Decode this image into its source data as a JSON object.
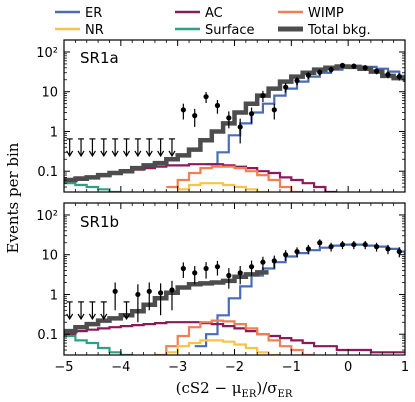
{
  "chart_data": [
    {
      "type": "line",
      "panel_label": "SR1a",
      "xlim": [
        -5,
        1
      ],
      "ylim": [
        0.03,
        200
      ],
      "yscale": "log",
      "x_ticks": [
        "−5",
        "−4",
        "−3",
        "−2",
        "−1",
        "0",
        "1"
      ],
      "y_ticks": [
        "0.1",
        "1",
        "10",
        "10²"
      ],
      "legend": [
        {
          "name": "ER",
          "color": "#4a6bb8"
        },
        {
          "name": "AC",
          "color": "#8b1a5b"
        },
        {
          "name": "WIMP",
          "color": "#f07f55"
        },
        {
          "name": "NR",
          "color": "#f7c443"
        },
        {
          "name": "Surface",
          "color": "#2ea083"
        },
        {
          "name": "Total bkg.",
          "color": "#4d4d4d"
        }
      ],
      "series": [
        {
          "name": "ER",
          "color": "#4a6bb8",
          "x": [
            -2.5,
            -2.3,
            -2.1,
            -1.9,
            -1.7,
            -1.5,
            -1.3,
            -1.1,
            -0.9,
            -0.7,
            -0.5,
            -0.3,
            -0.1,
            0.1,
            0.3,
            0.5,
            0.7,
            0.9,
            1.0
          ],
          "y": [
            0.15,
            0.3,
            0.8,
            1.6,
            3,
            5,
            8,
            12,
            18,
            24,
            30,
            36,
            40,
            43,
            42,
            38,
            32,
            25,
            22
          ]
        },
        {
          "name": "AC",
          "color": "#8b1a5b",
          "x": [
            -5.0,
            -4.8,
            -4.6,
            -4.4,
            -4.2,
            -4.0,
            -3.8,
            -3.6,
            -3.4,
            -3.2,
            -3.0,
            -2.8,
            -2.6,
            -2.4,
            -2.2,
            -2.0,
            -1.8,
            -1.6,
            -1.4,
            -1.2,
            -1.0,
            -0.8,
            -0.6,
            -0.4
          ],
          "y": [
            0.06,
            0.07,
            0.07,
            0.08,
            0.09,
            0.1,
            0.11,
            0.12,
            0.13,
            0.14,
            0.14,
            0.15,
            0.15,
            0.15,
            0.14,
            0.13,
            0.12,
            0.1,
            0.09,
            0.07,
            0.06,
            0.05,
            0.04,
            0.03
          ]
        },
        {
          "name": "WIMP",
          "color": "#f07f55",
          "x": [
            -3.2,
            -3.0,
            -2.8,
            -2.6,
            -2.4,
            -2.2,
            -2.0,
            -1.8,
            -1.6,
            -1.4,
            -1.2,
            -1.0
          ],
          "y": [
            0.04,
            0.06,
            0.09,
            0.12,
            0.13,
            0.13,
            0.12,
            0.1,
            0.08,
            0.06,
            0.04,
            0.03
          ]
        },
        {
          "name": "NR",
          "color": "#f7c443",
          "x": [
            -3.0,
            -2.8,
            -2.6,
            -2.4,
            -2.2,
            -2.0,
            -1.8,
            -1.6
          ],
          "y": [
            0.035,
            0.045,
            0.05,
            0.05,
            0.045,
            0.04,
            0.035,
            0.03
          ]
        },
        {
          "name": "Surface",
          "color": "#2ea083",
          "x": [
            -5.0,
            -4.8,
            -4.6,
            -4.4,
            -4.2
          ],
          "y": [
            0.05,
            0.045,
            0.04,
            0.035,
            0.03
          ]
        },
        {
          "name": "Total bkg.",
          "color": "#4d4d4d",
          "x": [
            -5.0,
            -4.8,
            -4.6,
            -4.4,
            -4.2,
            -4.0,
            -3.8,
            -3.6,
            -3.4,
            -3.2,
            -3.0,
            -2.8,
            -2.6,
            -2.4,
            -2.2,
            -2.0,
            -1.8,
            -1.6,
            -1.4,
            -1.2,
            -1.0,
            -0.8,
            -0.6,
            -0.4,
            -0.2,
            0.0,
            0.2,
            0.4,
            0.6,
            0.8,
            1.0
          ],
          "y": [
            0.06,
            0.065,
            0.07,
            0.08,
            0.09,
            0.1,
            0.12,
            0.14,
            0.16,
            0.2,
            0.25,
            0.35,
            0.6,
            1.0,
            1.6,
            3,
            5,
            8,
            12,
            18,
            24,
            30,
            36,
            40,
            43,
            42,
            38,
            32,
            25,
            22,
            20
          ]
        }
      ],
      "data_points": {
        "x": [
          -2.1,
          -1.9,
          -1.7,
          -1.5,
          -1.3,
          -1.1,
          -0.9,
          -0.7,
          -0.5,
          -0.3,
          -0.1,
          0.1,
          0.3,
          0.5,
          0.7,
          0.9,
          -2.9,
          -2.7,
          -2.5,
          -2.3
        ],
        "y": [
          2.2,
          1.3,
          2.8,
          8,
          3.5,
          13,
          19,
          26,
          31,
          36,
          46,
          44,
          40,
          33,
          27,
          24,
          3.5,
          2.5,
          7.5,
          4.5
        ],
        "yerr": [
          1.0,
          0.8,
          1.2,
          2.5,
          1.5,
          3.5,
          4.3,
          5,
          5.5,
          6,
          6.8,
          6.6,
          6.3,
          5.7,
          5.2,
          4.9,
          1.5,
          1.2,
          2.3,
          1.7
        ]
      },
      "upper_limits_x": [
        -4.9,
        -4.7,
        -4.5,
        -4.3,
        -4.1,
        -3.9,
        -3.7,
        -3.5,
        -3.3,
        -3.1
      ],
      "upper_limit_y": 0.65
    },
    {
      "type": "line",
      "panel_label": "SR1b",
      "xlim": [
        -5,
        1
      ],
      "ylim": [
        0.03,
        200
      ],
      "yscale": "log",
      "x_ticks": [
        "−5",
        "−4",
        "−3",
        "−2",
        "−1",
        "0",
        "1"
      ],
      "y_ticks": [
        "0.1",
        "1",
        "10",
        "10²"
      ],
      "series": [
        {
          "name": "ER",
          "color": "#4a6bb8",
          "x": [
            -2.7,
            -2.5,
            -2.3,
            -2.1,
            -1.9,
            -1.7,
            -1.5,
            -1.3,
            -1.1,
            -0.9,
            -0.7,
            -0.5,
            -0.3,
            -0.1,
            0.1,
            0.3,
            0.5,
            0.7,
            0.9,
            1.0
          ],
          "y": [
            0.05,
            0.1,
            0.3,
            0.8,
            1.6,
            3,
            4.5,
            6.5,
            9,
            11,
            13,
            15,
            17,
            18,
            18,
            17,
            16,
            14,
            12,
            11
          ]
        },
        {
          "name": "AC",
          "color": "#8b1a5b",
          "x": [
            -5.0,
            -4.8,
            -4.6,
            -4.4,
            -4.2,
            -4.0,
            -3.8,
            -3.6,
            -3.4,
            -3.2,
            -3.0,
            -2.8,
            -2.6,
            -2.4,
            -2.2,
            -2.0,
            -1.8,
            -1.6,
            -1.4,
            -1.2,
            -1.0,
            -0.8,
            -0.6,
            -0.4,
            -0.2,
            0.0,
            0.2,
            0.4,
            0.6,
            0.8,
            1.0
          ],
          "y": [
            0.1,
            0.12,
            0.13,
            0.14,
            0.15,
            0.16,
            0.17,
            0.18,
            0.19,
            0.2,
            0.2,
            0.2,
            0.19,
            0.18,
            0.16,
            0.14,
            0.12,
            0.1,
            0.09,
            0.08,
            0.07,
            0.06,
            0.05,
            0.05,
            0.04,
            0.04,
            0.04,
            0.035,
            0.035,
            0.035,
            0.035
          ]
        },
        {
          "name": "WIMP",
          "color": "#f07f55",
          "x": [
            -3.4,
            -3.2,
            -3.0,
            -2.8,
            -2.6,
            -2.4,
            -2.2,
            -2.0,
            -1.8,
            -1.6,
            -1.4,
            -1.2,
            -1.0,
            -0.8
          ],
          "y": [
            0.03,
            0.05,
            0.09,
            0.15,
            0.2,
            0.22,
            0.21,
            0.18,
            0.14,
            0.1,
            0.07,
            0.05,
            0.04,
            0.03
          ]
        },
        {
          "name": "NR",
          "color": "#f7c443",
          "x": [
            -3.2,
            -3.0,
            -2.8,
            -2.6,
            -2.4,
            -2.2,
            -2.0,
            -1.8,
            -1.6,
            -1.4
          ],
          "y": [
            0.035,
            0.05,
            0.06,
            0.07,
            0.07,
            0.065,
            0.055,
            0.045,
            0.035,
            0.03
          ]
        },
        {
          "name": "Surface",
          "color": "#2ea083",
          "x": [
            -5.0,
            -4.8,
            -4.6,
            -4.4,
            -4.2,
            -4.0
          ],
          "y": [
            0.09,
            0.07,
            0.06,
            0.045,
            0.035,
            0.03
          ]
        },
        {
          "name": "Total bkg.",
          "color": "#4d4d4d",
          "x": [
            -5.0,
            -4.8,
            -4.6,
            -4.4,
            -4.2,
            -4.0,
            -3.8,
            -3.6,
            -3.4,
            -3.2,
            -3.0,
            -2.8,
            -2.6,
            -2.4,
            -2.2,
            -2.0,
            -1.8,
            -1.6
          ],
          "y": [
            0.12,
            0.15,
            0.18,
            0.22,
            0.25,
            0.3,
            0.38,
            0.55,
            0.8,
            1.1,
            1.5,
            1.8,
            1.9,
            2.0,
            2.2,
            2.8,
            3.2,
            3.6
          ]
        }
      ],
      "data_points": {
        "x": [
          -4.1,
          -3.7,
          -3.5,
          -3.3,
          -3.1,
          -2.9,
          -2.7,
          -2.5,
          -2.3,
          -2.1,
          -1.9,
          -1.7,
          -1.5,
          -1.3,
          -1.1,
          -0.9,
          -0.7,
          -0.5,
          -0.3,
          -0.1,
          0.1,
          0.3,
          0.5,
          0.7,
          0.9
        ],
        "y": [
          1.2,
          1.0,
          1.2,
          1.1,
          1.3,
          4.5,
          3.5,
          4.5,
          5.0,
          3.0,
          3.5,
          5.0,
          6.5,
          7.0,
          10,
          12,
          14,
          20,
          16,
          18,
          18,
          18,
          16,
          14,
          12
        ],
        "yerr": [
          0.8,
          0.8,
          0.8,
          0.8,
          0.9,
          1.9,
          1.7,
          2.0,
          2.0,
          1.6,
          1.7,
          2.1,
          2.4,
          2.5,
          3,
          3.3,
          3.7,
          4.4,
          4,
          4.2,
          4.2,
          4.2,
          4,
          3.7,
          3.4
        ]
      },
      "upper_limits_x": [
        -4.9,
        -4.7,
        -4.5,
        -4.3,
        -3.9
      ],
      "upper_limit_y": 0.65
    }
  ],
  "xlabel": "(cS2 − μ",
  "xlabel_sub": "ER",
  "xlabel_mid": ")/σ",
  "xlabel_sub2": "ER",
  "ylabel": "Events per bin"
}
